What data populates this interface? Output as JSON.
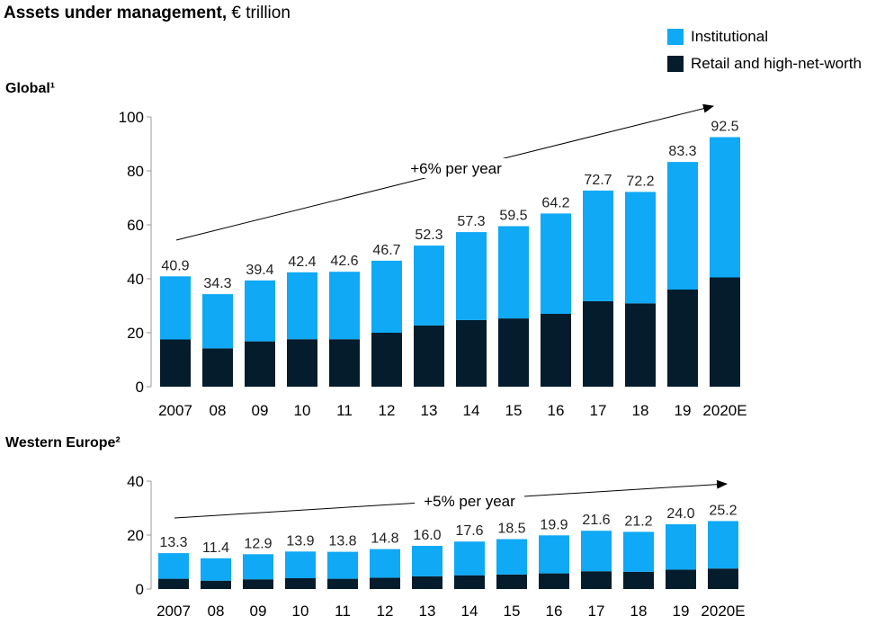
{
  "header": {
    "title_bold": "Assets under management,",
    "title_rest": " € trillion"
  },
  "legend": [
    {
      "label": "Institutional",
      "color": "#0FA9F5"
    },
    {
      "label": "Retail and high-net-worth",
      "color": "#051C2C"
    }
  ],
  "chart_data": [
    {
      "type": "bar",
      "stacked": true,
      "title": "Global¹",
      "categories": [
        "2007",
        "08",
        "09",
        "10",
        "11",
        "12",
        "13",
        "14",
        "15",
        "16",
        "17",
        "18",
        "19",
        "2020E"
      ],
      "totals": [
        40.9,
        34.3,
        39.4,
        42.4,
        42.6,
        46.7,
        52.3,
        57.3,
        59.5,
        64.2,
        72.7,
        72.2,
        83.3,
        92.5
      ],
      "series": [
        {
          "name": "Retail and high-net-worth",
          "color": "#051C2C",
          "values": [
            17.5,
            14.2,
            16.8,
            17.6,
            17.6,
            20.0,
            22.7,
            24.7,
            25.3,
            27.0,
            31.7,
            30.9,
            36.0,
            40.5
          ]
        },
        {
          "name": "Institutional",
          "color": "#0FA9F5",
          "values": [
            23.4,
            20.1,
            22.6,
            24.8,
            25.0,
            26.7,
            29.6,
            32.6,
            34.2,
            37.2,
            41.0,
            41.3,
            47.3,
            52.0
          ]
        }
      ],
      "ylim": [
        0,
        100
      ],
      "yticks": [
        0,
        20,
        40,
        60,
        80,
        100
      ],
      "annotation": "+6% per year"
    },
    {
      "type": "bar",
      "stacked": true,
      "title": "Western Europe²",
      "categories": [
        "2007",
        "08",
        "09",
        "10",
        "11",
        "12",
        "13",
        "14",
        "15",
        "16",
        "17",
        "18",
        "19",
        "2020E"
      ],
      "totals": [
        13.3,
        11.4,
        12.9,
        13.9,
        13.8,
        14.8,
        16.0,
        17.6,
        18.5,
        19.9,
        21.6,
        21.2,
        24.0,
        25.2
      ],
      "series": [
        {
          "name": "Retail and high-net-worth",
          "color": "#051C2C",
          "values": [
            3.8,
            3.1,
            3.6,
            4.0,
            3.8,
            4.2,
            4.7,
            5.1,
            5.4,
            5.8,
            6.6,
            6.4,
            7.2,
            7.6
          ]
        },
        {
          "name": "Institutional",
          "color": "#0FA9F5",
          "values": [
            9.5,
            8.3,
            9.3,
            9.9,
            10.0,
            10.6,
            11.3,
            12.5,
            13.1,
            14.1,
            15.0,
            14.8,
            16.8,
            17.6
          ]
        }
      ],
      "ylim": [
        0,
        40
      ],
      "yticks": [
        0,
        20,
        40
      ],
      "annotation": "+5% per year"
    }
  ]
}
